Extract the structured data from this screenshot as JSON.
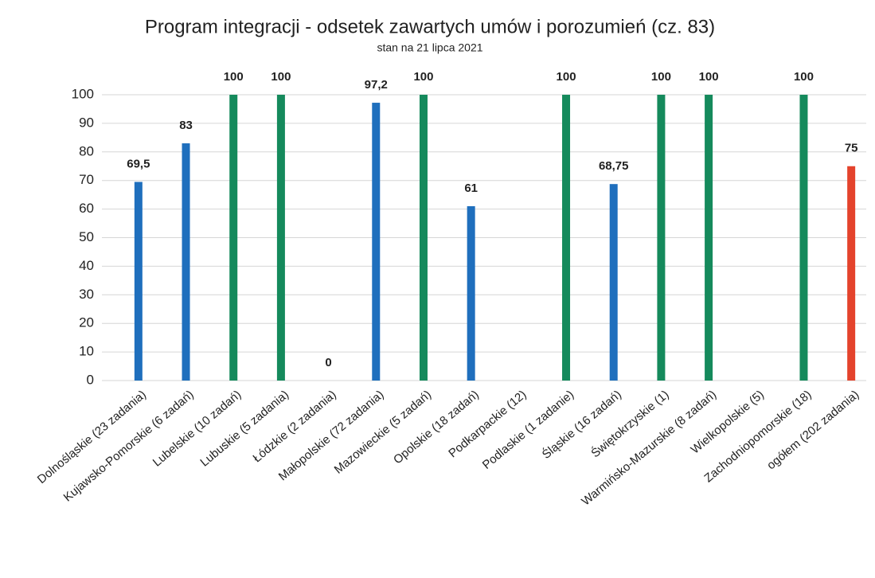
{
  "chart_data": {
    "type": "bar",
    "title": "Program integracji - odsetek zawartych umów i porozumień (cz. 83)",
    "subtitle": "stan na 21 lipca 2021",
    "categories": [
      "Dolnośląskie (23 zadania)",
      "Kujawsko-Pomorskie (6 zadań)",
      "Lubelskie (10 zadań)",
      "Lubuskie (5 zadania)",
      "Łódzkie (2 zadania)",
      "Małopolskie (72 zadania)",
      "Mazowieckie (5 zadań)",
      "Opolskie (18 zadań)",
      "Podkarpackie (12)",
      "Podlaskie (1 zadanie)",
      "Śląskie (16 zadań)",
      "Świętokrzyskie (1)",
      "Warmińsko-Mazurskie (8 zadań)",
      "Wielkopolskie (5)",
      "Zachodniopomorskie (18)",
      "ogółem (202 zadania)"
    ],
    "values": [
      69.5,
      83,
      100,
      100,
      0,
      97.2,
      100,
      61,
      null,
      100,
      68.75,
      100,
      100,
      null,
      100,
      75
    ],
    "value_labels": [
      "69,5",
      "83",
      "100",
      "100",
      "0",
      "97,2",
      "100",
      "61",
      null,
      "100",
      "68,75",
      "100",
      "100",
      null,
      "100",
      "75"
    ],
    "colors": [
      "#1f6fbd",
      "#1f6fbd",
      "#158a5c",
      "#158a5c",
      "#1f6fbd",
      "#1f6fbd",
      "#158a5c",
      "#1f6fbd",
      null,
      "#158a5c",
      "#1f6fbd",
      "#158a5c",
      "#158a5c",
      null,
      "#158a5c",
      "#e4432c"
    ],
    "ylim": [
      0,
      100
    ],
    "yticks": [
      0,
      10,
      20,
      30,
      40,
      50,
      60,
      70,
      80,
      90,
      100
    ],
    "grid": true
  }
}
